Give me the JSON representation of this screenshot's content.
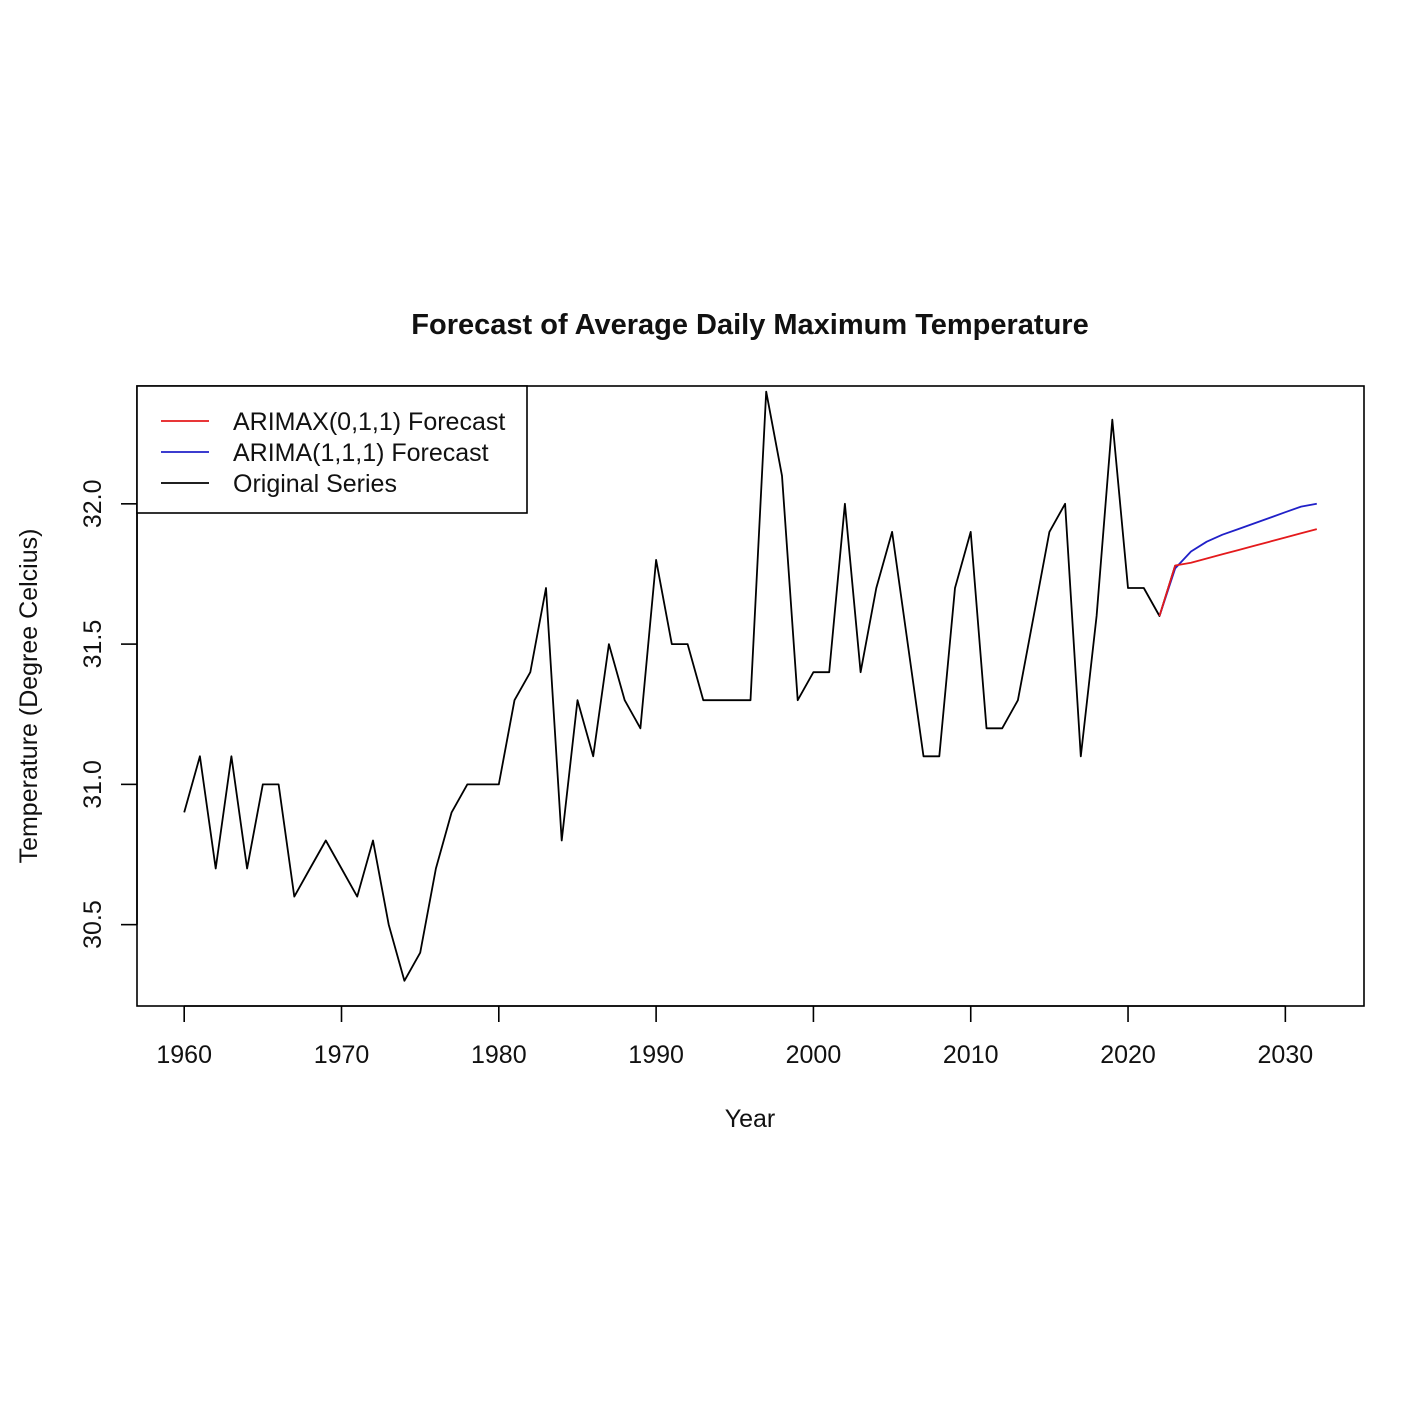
{
  "chart_data": {
    "type": "line",
    "title": "Forecast of Average Daily Maximum Temperature",
    "xlabel": "Year",
    "ylabel": "Temperature (Degree Celcius)",
    "xlim": [
      1957,
      2035
    ],
    "ylim": [
      30.21,
      32.42
    ],
    "x_ticks": [
      1960,
      1970,
      1980,
      1990,
      2000,
      2010,
      2020,
      2030
    ],
    "x_tick_labels": [
      "1960",
      "1970",
      "1980",
      "1990",
      "2000",
      "2010",
      "2020",
      "2030"
    ],
    "y_ticks": [
      30.5,
      31.0,
      31.5,
      32.0
    ],
    "y_tick_labels": [
      "30.5",
      "31.0",
      "31.5",
      "32.0"
    ],
    "grid": false,
    "legend_position": "top-left",
    "legend": [
      {
        "label": "ARIMAX(0,1,1) Forecast",
        "color": "#e41a1c"
      },
      {
        "label": "ARIMA(1,1,1) Forecast",
        "color": "#2020c8"
      },
      {
        "label": "Original Series",
        "color": "#000000"
      }
    ],
    "series": [
      {
        "name": "Original Series",
        "color": "#000000",
        "x": [
          1960,
          1961,
          1962,
          1963,
          1964,
          1965,
          1966,
          1967,
          1968,
          1969,
          1970,
          1971,
          1972,
          1973,
          1974,
          1975,
          1976,
          1977,
          1978,
          1979,
          1980,
          1981,
          1982,
          1983,
          1984,
          1985,
          1986,
          1987,
          1988,
          1989,
          1990,
          1991,
          1992,
          1993,
          1994,
          1995,
          1996,
          1997,
          1998,
          1999,
          2000,
          2001,
          2002,
          2003,
          2004,
          2005,
          2006,
          2007,
          2008,
          2009,
          2010,
          2011,
          2012,
          2013,
          2014,
          2015,
          2016,
          2017,
          2018,
          2019,
          2020,
          2021,
          2022,
          2023
        ],
        "values": [
          30.9,
          31.1,
          30.7,
          31.1,
          30.7,
          31.0,
          31.0,
          30.6,
          30.7,
          30.8,
          30.7,
          30.6,
          30.8,
          30.5,
          30.3,
          30.4,
          30.7,
          30.9,
          31.0,
          31.0,
          31.0,
          31.3,
          31.4,
          31.7,
          30.8,
          31.3,
          31.1,
          31.5,
          31.3,
          31.2,
          31.8,
          31.5,
          31.5,
          31.3,
          31.3,
          31.3,
          31.3,
          32.4,
          32.1,
          31.3,
          31.4,
          31.4,
          32.0,
          31.4,
          31.7,
          31.9,
          31.5,
          31.1,
          31.1,
          31.7,
          31.9,
          31.2,
          31.2,
          31.3,
          31.6,
          31.9,
          32.0,
          31.1,
          31.6,
          32.3,
          31.7,
          31.7,
          31.6,
          31.78
        ]
      },
      {
        "name": "ARIMAX(0,1,1) Forecast",
        "color": "#e41a1c",
        "x": [
          2022,
          2023,
          2024,
          2025,
          2026,
          2027,
          2028,
          2029,
          2030,
          2031,
          2032
        ],
        "values": [
          31.6,
          31.78,
          31.79,
          31.805,
          31.82,
          31.835,
          31.85,
          31.865,
          31.88,
          31.895,
          31.91
        ]
      },
      {
        "name": "ARIMA(1,1,1) Forecast",
        "color": "#2020c8",
        "x": [
          2022,
          2023,
          2024,
          2025,
          2026,
          2027,
          2028,
          2029,
          2030,
          2031,
          2032
        ],
        "values": [
          31.6,
          31.77,
          31.83,
          31.865,
          31.89,
          31.91,
          31.93,
          31.95,
          31.97,
          31.99,
          32.0
        ]
      }
    ]
  }
}
